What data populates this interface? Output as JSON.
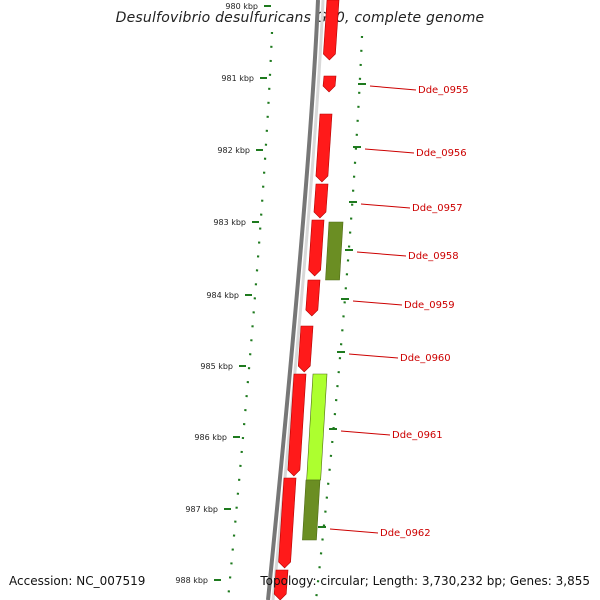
{
  "title": "Desulfovibrio desulfuricans G20, complete genome",
  "footer": {
    "accession": "Accession: NC_007519",
    "summary": "Topology: circular; Length: 3,730,232 bp; Genes: 3,855"
  },
  "colors": {
    "forward_gene": "#ff1a1a",
    "reverse_gene_dark": "#6b8e23",
    "reverse_gene_light": "#adff2f",
    "tick_green": "#1e7a1e",
    "label_red": "#cc0000",
    "backbone": "#777777"
  },
  "scale": {
    "ticks": [
      "980 kbp",
      "981 kbp",
      "982 kbp",
      "983 kbp",
      "984 kbp",
      "985 kbp",
      "986 kbp",
      "987 kbp",
      "988 kbp"
    ]
  },
  "genes": [
    {
      "id": "Dde_0955"
    },
    {
      "id": "Dde_0956"
    },
    {
      "id": "Dde_0957"
    },
    {
      "id": "Dde_0958"
    },
    {
      "id": "Dde_0959"
    },
    {
      "id": "Dde_0960"
    },
    {
      "id": "Dde_0961"
    },
    {
      "id": "Dde_0962"
    }
  ]
}
